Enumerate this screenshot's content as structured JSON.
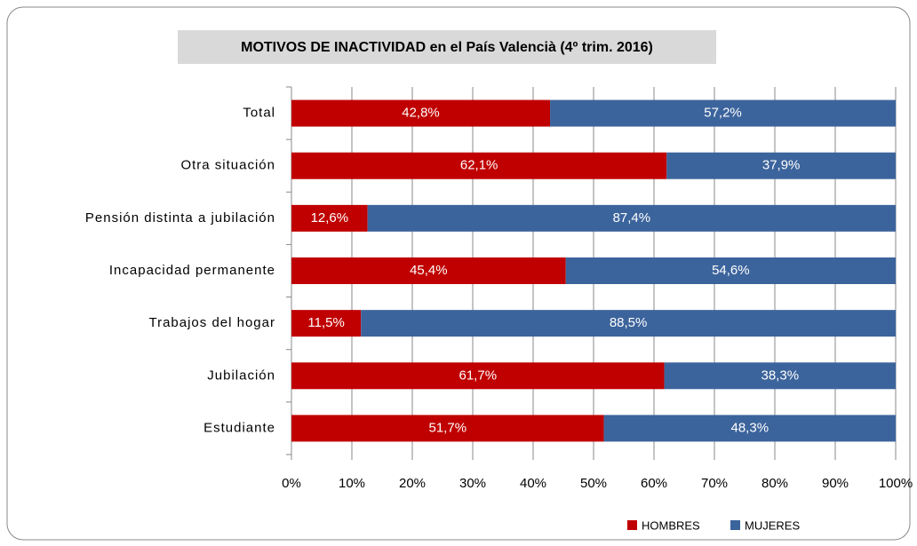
{
  "chart_data": {
    "type": "stacked_bar_horizontal",
    "title": "MOTIVOS DE INACTIVIDAD en el País Valencià (4º trim. 2016)",
    "categories": [
      "Total",
      "Otra situación",
      "Pensión distinta a jubilación",
      "Incapacidad permanente",
      "Trabajos del hogar",
      "Jubilación",
      "Estudiante"
    ],
    "series": [
      {
        "name": "HOMBRES",
        "color": "#c00000",
        "values": [
          42.8,
          62.1,
          12.6,
          45.4,
          11.5,
          61.7,
          51.7
        ],
        "value_labels": [
          "42,8%",
          "62,1%",
          "12,6%",
          "45,4%",
          "11,5%",
          "61,7%",
          "51,7%"
        ]
      },
      {
        "name": "MUJERES",
        "color": "#3c649c",
        "values": [
          57.2,
          37.9,
          87.4,
          54.6,
          88.5,
          38.3,
          48.3
        ],
        "value_labels": [
          "57,2%",
          "37,9%",
          "87,4%",
          "54,6%",
          "88,5%",
          "38,3%",
          "48,3%"
        ]
      }
    ],
    "xlim": [
      0,
      100
    ],
    "xticks": [
      {
        "value": 0,
        "label": "0%"
      },
      {
        "value": 10,
        "label": "10%"
      },
      {
        "value": 20,
        "label": "20%"
      },
      {
        "value": 30,
        "label": "30%"
      },
      {
        "value": 40,
        "label": "40%"
      },
      {
        "value": 50,
        "label": "50%"
      },
      {
        "value": 60,
        "label": "60%"
      },
      {
        "value": 70,
        "label": "70%"
      },
      {
        "value": 80,
        "label": "80%"
      },
      {
        "value": 90,
        "label": "90%"
      },
      {
        "value": 100,
        "label": "100%"
      }
    ],
    "grid": true,
    "legend": "bottom"
  }
}
